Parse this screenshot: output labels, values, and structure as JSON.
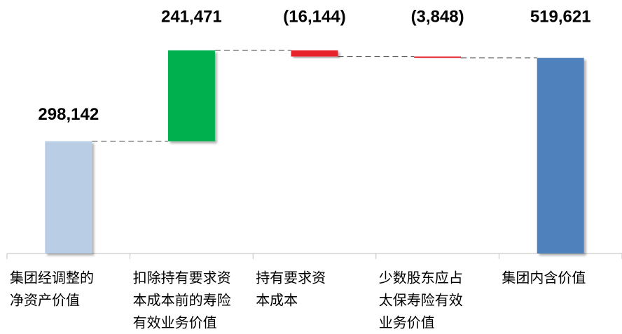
{
  "chart_data": {
    "type": "waterfall",
    "categories": [
      [
        "集团经调整的",
        "净资产价值"
      ],
      [
        "扣除持有要求资",
        "本成本前的寿险",
        "有效业务价值"
      ],
      [
        "持有要求资",
        "本成本"
      ],
      [
        "少数股东应占",
        "太保寿险有效",
        "业务价值"
      ],
      [
        "集团内含价值"
      ]
    ],
    "values": [
      298142,
      241471,
      -16144,
      -3848,
      519621
    ],
    "value_labels": [
      "298,142",
      "241,471",
      "(16,144)",
      "(3,848)",
      "519,621"
    ],
    "colors": [
      "#b9cde5",
      "#00b050",
      "#e8202a",
      "#e8202a",
      "#4f81bd"
    ],
    "ylim": [
      0,
      560000
    ]
  }
}
